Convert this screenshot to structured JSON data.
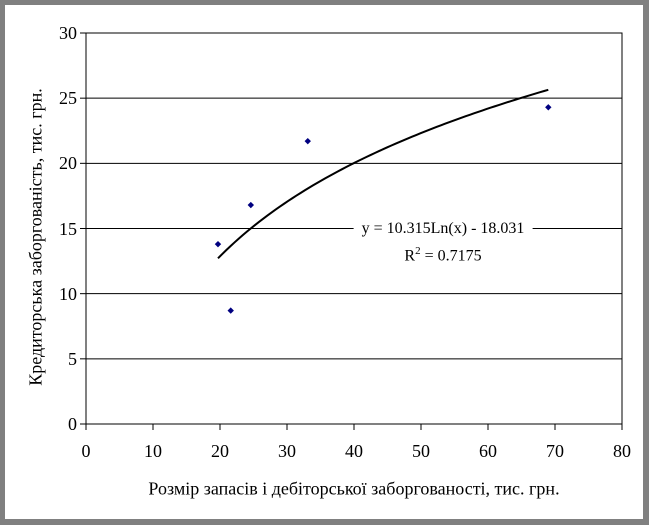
{
  "colors": {
    "frame_border": "#808080",
    "marker": "#000080",
    "axis_and_grid": "#000000",
    "trendline": "#000000"
  },
  "chart_data": {
    "type": "scatter",
    "title": "",
    "xlabel": "Розмір запасів і дебіторської заборгованості, тис. грн.",
    "ylabel": "Кредиторська заборгованість, тис. грн.",
    "xlim": [
      0,
      80
    ],
    "ylim": [
      0,
      30
    ],
    "xticks": [
      0,
      10,
      20,
      30,
      40,
      50,
      60,
      70,
      80
    ],
    "yticks": [
      0,
      5,
      10,
      15,
      20,
      25,
      30
    ],
    "grid": "horizontal-only",
    "legend": "none",
    "marker_color": "#000080",
    "points": [
      {
        "x": 19.7,
        "y": 13.8
      },
      {
        "x": 21.6,
        "y": 8.7
      },
      {
        "x": 24.6,
        "y": 16.8
      },
      {
        "x": 33.1,
        "y": 21.7
      },
      {
        "x": 69.0,
        "y": 24.3
      }
    ],
    "trendline": {
      "type": "logarithmic",
      "a": 10.315,
      "b": -18.031,
      "x_start": 19.7,
      "x_end": 69.0,
      "color": "#000000",
      "equation_label": "y = 10.315Ln(x) - 18.031",
      "r2_prefix": "R",
      "r2_sup": "2",
      "r2_rest": " = 0.7175"
    }
  }
}
